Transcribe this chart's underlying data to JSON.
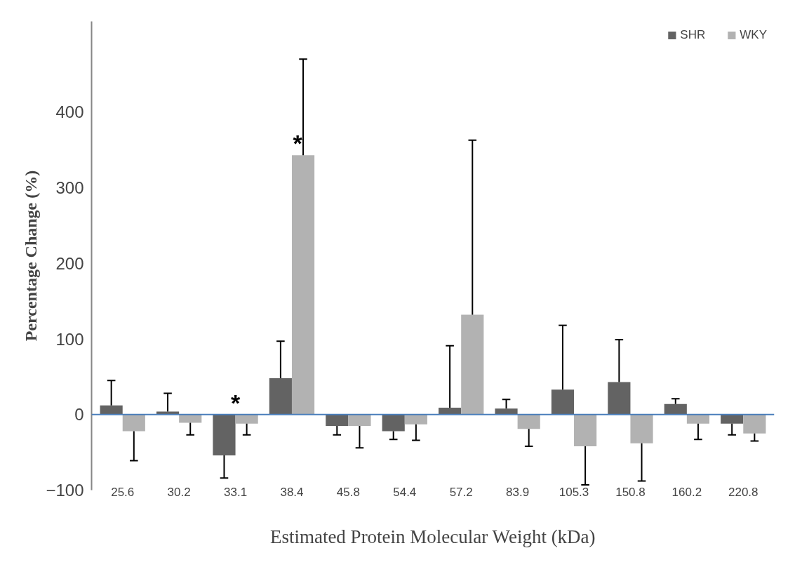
{
  "chart_data": {
    "type": "bar",
    "categories": [
      "25.6",
      "30.2",
      "33.1",
      "38.4",
      "45.8",
      "54.4",
      "57.2",
      "83.9",
      "105.3",
      "150.8",
      "160.2",
      "220.8"
    ],
    "series": [
      {
        "name": "SHR",
        "color": "#636363",
        "values": [
          12,
          4,
          -54,
          48,
          -15,
          -22,
          9,
          8,
          33,
          43,
          14,
          -12
        ],
        "errors": [
          [
            12,
            45
          ],
          [
            4,
            28
          ],
          [
            -84,
            -54
          ],
          [
            48,
            97
          ],
          [
            -27,
            -15
          ],
          [
            -33,
            -22
          ],
          [
            9,
            91
          ],
          [
            8,
            20
          ],
          [
            33,
            118
          ],
          [
            43,
            99
          ],
          [
            14,
            21
          ],
          [
            -27,
            -12
          ]
        ]
      },
      {
        "name": "WKY",
        "color": "#b2b2b2",
        "values": [
          -22,
          -11,
          -12,
          343,
          -15,
          -13,
          132,
          -19,
          -42,
          -38,
          -12,
          -25
        ],
        "errors": [
          [
            -61,
            -22
          ],
          [
            -27,
            -11
          ],
          [
            -27,
            -12
          ],
          [
            343,
            470
          ],
          [
            -44,
            -15
          ],
          [
            -34,
            -13
          ],
          [
            132,
            363
          ],
          [
            -42,
            -19
          ],
          [
            -93,
            -42
          ],
          [
            -88,
            -38
          ],
          [
            -33,
            -12
          ],
          [
            -35,
            -25
          ]
        ]
      }
    ],
    "xlabel": "Estimated Protein Molecular Weight (kDa)",
    "ylabel": "Percentage Change (%)",
    "ylim": [
      -100,
      520
    ],
    "yticks": [
      -100,
      0,
      100,
      200,
      300,
      400
    ],
    "grid": false,
    "legend": "top right",
    "ref_lines": [
      {
        "axis": "y",
        "value": 0,
        "color": "#4a7ebb"
      }
    ],
    "annotations": [
      {
        "text": "*",
        "x": "33.1",
        "y": 0
      },
      {
        "text": "*",
        "x": "38.4",
        "y": 343
      }
    ]
  }
}
